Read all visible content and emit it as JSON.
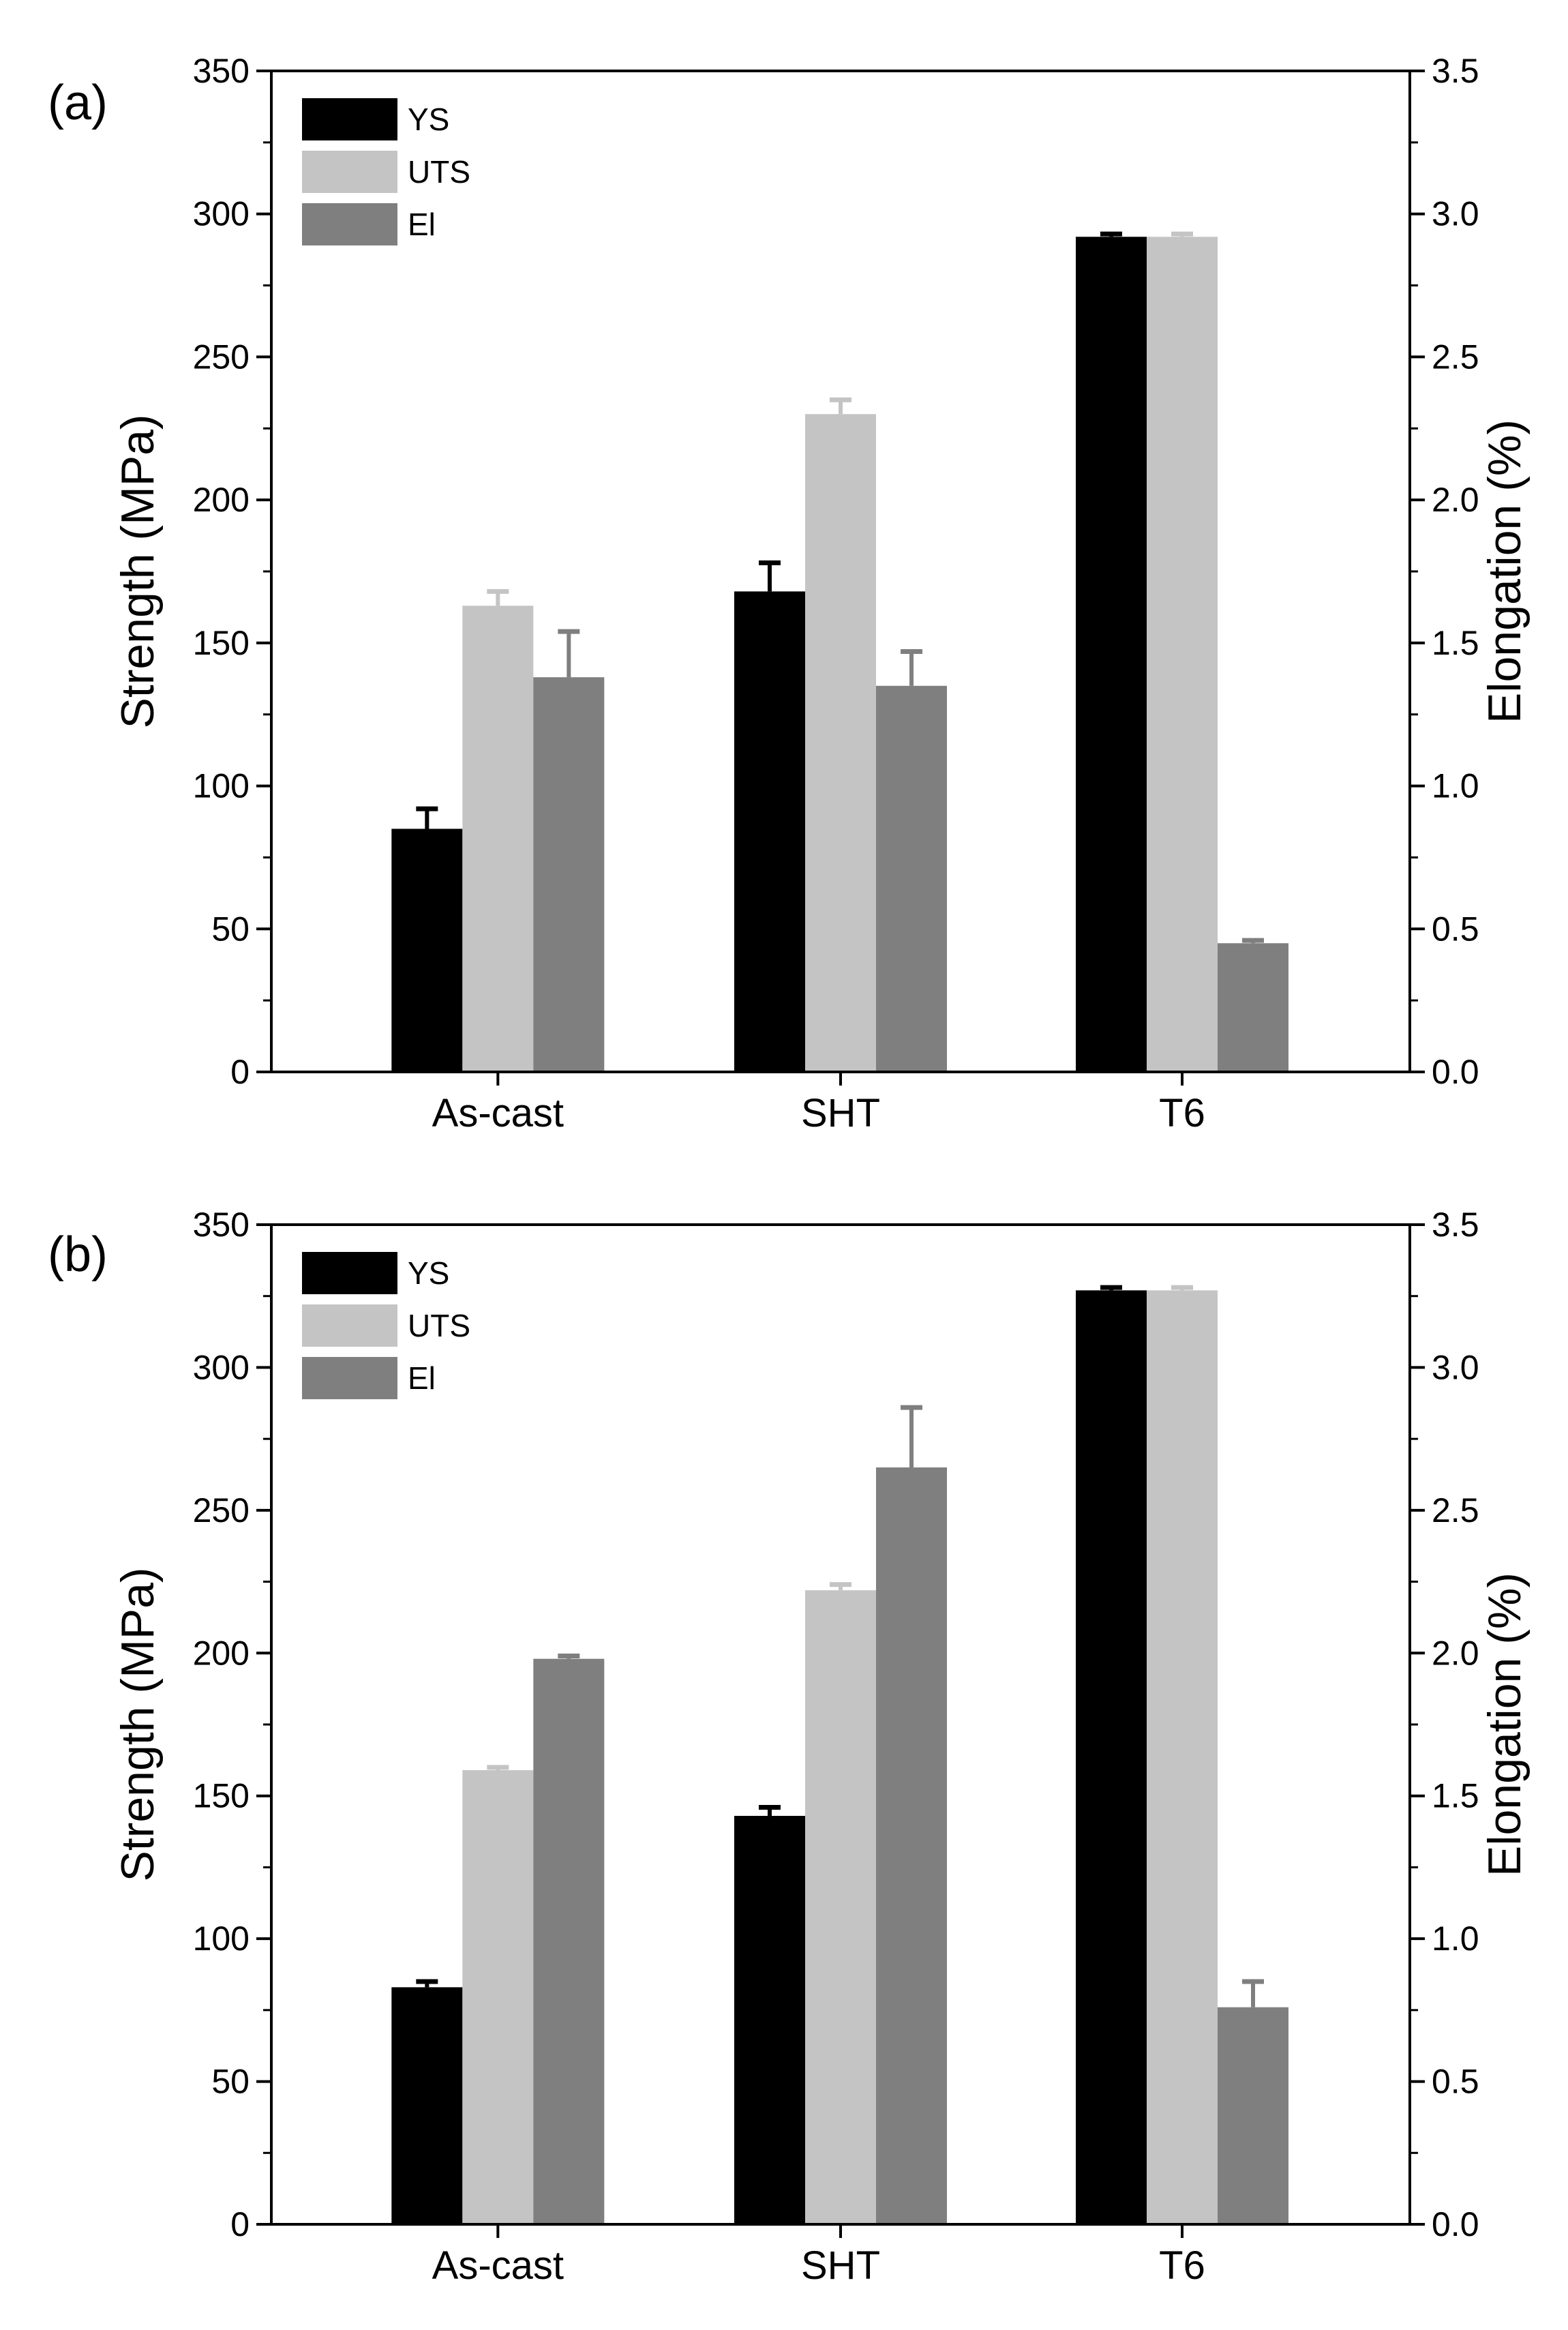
{
  "colors": {
    "YS": "#000000",
    "UTS": "#c4c4c4",
    "El": "#7f7f7f",
    "axis": "#000000",
    "background": "#ffffff"
  },
  "chart_data": [
    {
      "panel_label": "(a)",
      "type": "bar",
      "categories": [
        "As-cast",
        "SHT",
        "T6"
      ],
      "ylabel": "Strength (MPa)",
      "y2label": "Elongation (%)",
      "ylim": [
        0,
        350
      ],
      "y2lim": [
        0.0,
        3.5
      ],
      "yticks": [
        "0",
        "50",
        "100",
        "150",
        "200",
        "250",
        "300",
        "350"
      ],
      "y2ticks": [
        "0.0",
        "0.5",
        "1.0",
        "1.5",
        "2.0",
        "2.5",
        "3.0",
        "3.5"
      ],
      "legend": [
        "YS",
        "UTS",
        "El"
      ],
      "legend_position": "top-left",
      "grid": false,
      "series": [
        {
          "name": "YS",
          "axis": "left",
          "values": [
            85,
            168,
            292
          ],
          "errors": [
            7,
            10,
            1
          ]
        },
        {
          "name": "UTS",
          "axis": "left",
          "values": [
            163,
            230,
            292
          ],
          "errors": [
            5,
            5,
            1
          ]
        },
        {
          "name": "El",
          "axis": "right",
          "values": [
            1.38,
            1.35,
            0.45
          ],
          "errors": [
            0.16,
            0.12,
            0.01
          ]
        }
      ]
    },
    {
      "panel_label": "(b)",
      "type": "bar",
      "categories": [
        "As-cast",
        "SHT",
        "T6"
      ],
      "ylabel": "Strength (MPa)",
      "y2label": "Elongation (%)",
      "ylim": [
        0,
        350
      ],
      "y2lim": [
        0.0,
        3.5
      ],
      "yticks": [
        "0",
        "50",
        "100",
        "150",
        "200",
        "250",
        "300",
        "350"
      ],
      "y2ticks": [
        "0.0",
        "0.5",
        "1.0",
        "1.5",
        "2.0",
        "2.5",
        "3.0",
        "3.5"
      ],
      "legend": [
        "YS",
        "UTS",
        "El"
      ],
      "legend_position": "top-left",
      "grid": false,
      "series": [
        {
          "name": "YS",
          "axis": "left",
          "values": [
            83,
            143,
            327
          ],
          "errors": [
            2,
            3,
            1
          ]
        },
        {
          "name": "UTS",
          "axis": "left",
          "values": [
            159,
            222,
            327
          ],
          "errors": [
            1,
            2,
            1
          ]
        },
        {
          "name": "El",
          "axis": "right",
          "values": [
            1.98,
            2.65,
            0.76
          ],
          "errors": [
            0.01,
            0.21,
            0.09
          ]
        }
      ]
    }
  ]
}
